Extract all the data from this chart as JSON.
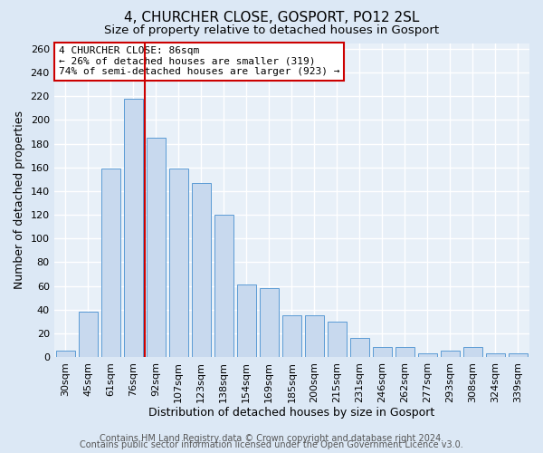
{
  "title": "4, CHURCHER CLOSE, GOSPORT, PO12 2SL",
  "subtitle": "Size of property relative to detached houses in Gosport",
  "xlabel": "Distribution of detached houses by size in Gosport",
  "ylabel": "Number of detached properties",
  "bar_labels": [
    "30sqm",
    "45sqm",
    "61sqm",
    "76sqm",
    "92sqm",
    "107sqm",
    "123sqm",
    "138sqm",
    "154sqm",
    "169sqm",
    "185sqm",
    "200sqm",
    "215sqm",
    "231sqm",
    "246sqm",
    "262sqm",
    "277sqm",
    "293sqm",
    "308sqm",
    "324sqm",
    "339sqm"
  ],
  "bar_heights": [
    5,
    38,
    159,
    218,
    185,
    159,
    147,
    120,
    61,
    58,
    35,
    35,
    30,
    16,
    8,
    8,
    3,
    5,
    8,
    3,
    3
  ],
  "bar_color": "#c8d9ee",
  "bar_edge_color": "#5b9bd5",
  "bar_width": 0.85,
  "redline_color": "#cc0000",
  "property_sqm": 86,
  "property_bin_index": 4,
  "ylim": [
    0,
    265
  ],
  "yticks": [
    0,
    20,
    40,
    60,
    80,
    100,
    120,
    140,
    160,
    180,
    200,
    220,
    240,
    260
  ],
  "annotation_title": "4 CHURCHER CLOSE: 86sqm",
  "annotation_line1": "← 26% of detached houses are smaller (319)",
  "annotation_line2": "74% of semi-detached houses are larger (923) →",
  "annotation_box_facecolor": "#ffffff",
  "annotation_box_edgecolor": "#cc0000",
  "footer_line1": "Contains HM Land Registry data © Crown copyright and database right 2024.",
  "footer_line2": "Contains public sector information licensed under the Open Government Licence v3.0.",
  "fig_facecolor": "#dce8f5",
  "plot_facecolor": "#e8f0f8",
  "grid_color": "#ffffff",
  "title_fontsize": 11,
  "subtitle_fontsize": 9.5,
  "axis_label_fontsize": 9,
  "tick_fontsize": 8,
  "annotation_fontsize": 8,
  "footer_fontsize": 7
}
